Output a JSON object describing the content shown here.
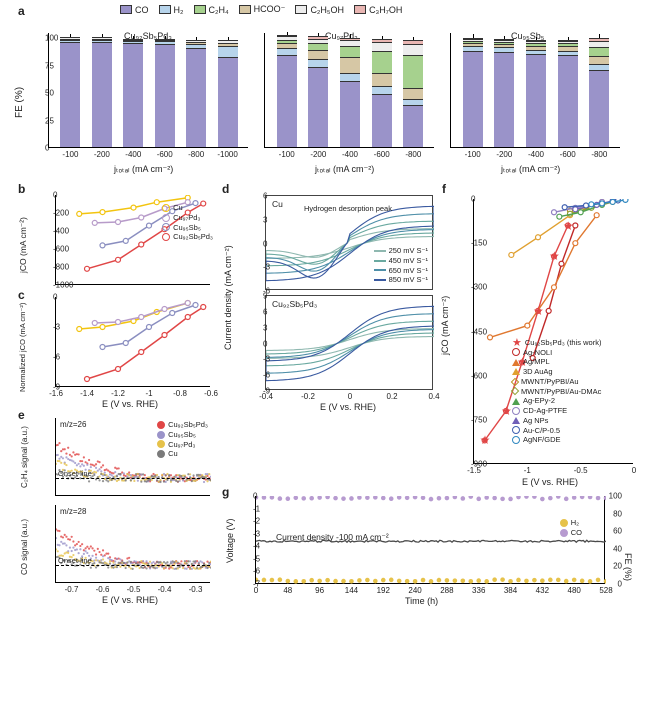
{
  "palette": {
    "CO": "#9a93c9",
    "H2": "#b7d4eb",
    "C2H4": "#a6d18e",
    "HCOO": "#d6c7a5",
    "C2H5OH": "#ededed",
    "C3H7OH": "#e9b6b3",
    "cu": "#f2c40f",
    "cu97pd3": "#b79bc9",
    "cu95sb5": "#8a8ec0",
    "cu92sb5pd3": "#e04646",
    "teal": "#4a9e9a",
    "navy": "#3a4a8f",
    "agNOLI": "#c02828",
    "agMPL": "#e07830",
    "auag": "#e0a030",
    "mwnt1": "#b89020",
    "mwnt2": "#90a030",
    "epy": "#50a050",
    "cdag": "#9080c0",
    "agnp": "#7060b8",
    "aucp": "#4060b0",
    "agnf": "#3088c0",
    "hpurple": "#b79bd0",
    "hyellow": "#e6c24a"
  },
  "legend_top": [
    {
      "key": "CO",
      "label": "CO"
    },
    {
      "key": "H2",
      "label": "H₂"
    },
    {
      "key": "C2H4",
      "label": "C₂H₄"
    },
    {
      "key": "HCOO",
      "label": "HCOO⁻"
    },
    {
      "key": "C2H5OH",
      "label": "C₂H₅OH"
    },
    {
      "key": "C3H7OH",
      "label": "C₃H₇OH"
    }
  ],
  "panel_a": {
    "ylabel": "FE (%)",
    "xlabel": "jₜₒₜₐₗ (mA cm⁻²)",
    "ymax": 105,
    "ytick": 25,
    "groups": [
      {
        "title": "Cu₉₂Sb₅Pd₃",
        "cats": [
          "-100",
          "-200",
          "-400",
          "-600",
          "-800",
          "-1000"
        ],
        "stacks": [
          {
            "CO": 96,
            "H2": 2,
            "HCOO": 1,
            "C2H4": 0,
            "C2H5OH": 1,
            "C3H7OH": 0
          },
          {
            "CO": 96,
            "H2": 2,
            "HCOO": 1,
            "C2H4": 0,
            "C2H5OH": 1,
            "C3H7OH": 0
          },
          {
            "CO": 95,
            "H2": 2,
            "HCOO": 1,
            "C2H4": 0,
            "C2H5OH": 1,
            "C3H7OH": 0
          },
          {
            "CO": 94,
            "H2": 3,
            "HCOO": 1,
            "C2H4": 0,
            "C2H5OH": 1,
            "C3H7OH": 0
          },
          {
            "CO": 90,
            "H2": 4,
            "HCOO": 2,
            "C2H4": 0,
            "C2H5OH": 2,
            "C3H7OH": 0
          },
          {
            "CO": 82,
            "H2": 10,
            "HCOO": 3,
            "C2H4": 0,
            "C2H5OH": 3,
            "C3H7OH": 0
          }
        ]
      },
      {
        "title": "Cu₉₇Pd₃",
        "cats": [
          "-100",
          "-200",
          "-400",
          "-600",
          "-800"
        ],
        "stacks": [
          {
            "CO": 84,
            "H2": 6,
            "HCOO": 5,
            "C2H4": 3,
            "C2H5OH": 3,
            "C3H7OH": 1
          },
          {
            "CO": 73,
            "H2": 7,
            "HCOO": 9,
            "C2H4": 6,
            "C2H5OH": 4,
            "C3H7OH": 2
          },
          {
            "CO": 60,
            "H2": 8,
            "HCOO": 14,
            "C2H4": 10,
            "C2H5OH": 6,
            "C3H7OH": 2
          },
          {
            "CO": 48,
            "H2": 8,
            "HCOO": 12,
            "C2H4": 20,
            "C2H5OH": 8,
            "C3H7OH": 3
          },
          {
            "CO": 38,
            "H2": 6,
            "HCOO": 10,
            "C2H4": 30,
            "C2H5OH": 10,
            "C3H7OH": 4
          }
        ]
      },
      {
        "title": "Cu₉₅Sb₅",
        "cats": [
          "-100",
          "-200",
          "-400",
          "-600",
          "-800"
        ],
        "stacks": [
          {
            "CO": 88,
            "H2": 4,
            "HCOO": 3,
            "C2H4": 2,
            "C2H5OH": 2,
            "C3H7OH": 1
          },
          {
            "CO": 87,
            "H2": 4,
            "HCOO": 3,
            "C2H4": 2,
            "C2H5OH": 2,
            "C3H7OH": 1
          },
          {
            "CO": 85,
            "H2": 4,
            "HCOO": 3,
            "C2H4": 3,
            "C2H5OH": 2,
            "C3H7OH": 1
          },
          {
            "CO": 84,
            "H2": 4,
            "HCOO": 4,
            "C2H4": 3,
            "C2H5OH": 2,
            "C3H7OH": 1
          },
          {
            "CO": 70,
            "H2": 6,
            "HCOO": 7,
            "C2H4": 8,
            "C2H5OH": 6,
            "C3H7OH": 3
          }
        ]
      }
    ],
    "err": 2
  },
  "panel_b": {
    "ylabel": "jCO (mA cm⁻²)",
    "series": {
      "Cu": [
        {
          "x": -0.75,
          "y": -30
        },
        {
          "x": -0.95,
          "y": -80
        },
        {
          "x": -1.1,
          "y": -140
        },
        {
          "x": -1.3,
          "y": -190
        },
        {
          "x": -1.45,
          "y": -210
        }
      ],
      "Cu97Pd3": [
        {
          "x": -0.75,
          "y": -80
        },
        {
          "x": -0.9,
          "y": -150
        },
        {
          "x": -1.05,
          "y": -250
        },
        {
          "x": -1.2,
          "y": -300
        },
        {
          "x": -1.35,
          "y": -310
        }
      ],
      "Cu95Sb5": [
        {
          "x": -0.7,
          "y": -90
        },
        {
          "x": -0.85,
          "y": -180
        },
        {
          "x": -1.0,
          "y": -340
        },
        {
          "x": -1.15,
          "y": -510
        },
        {
          "x": -1.3,
          "y": -560
        }
      ],
      "Cu92Sb5Pd3": [
        {
          "x": -0.65,
          "y": -95
        },
        {
          "x": -0.75,
          "y": -195
        },
        {
          "x": -0.9,
          "y": -380
        },
        {
          "x": -1.05,
          "y": -550
        },
        {
          "x": -1.2,
          "y": -720
        },
        {
          "x": -1.4,
          "y": -820
        }
      ]
    },
    "ylim": [
      -1000,
      0
    ],
    "yticks": [
      -1000,
      -800,
      -600,
      -400,
      -200,
      0
    ]
  },
  "panel_c": {
    "ylabel": "Normalized jCO (mA cm⁻²)",
    "series": {
      "Cu": [
        {
          "x": -0.75,
          "y": -0.6
        },
        {
          "x": -0.95,
          "y": -1.5
        },
        {
          "x": -1.1,
          "y": -2.4
        },
        {
          "x": -1.3,
          "y": -3.0
        },
        {
          "x": -1.45,
          "y": -3.2
        }
      ],
      "Cu97Pd3": [
        {
          "x": -0.75,
          "y": -0.6
        },
        {
          "x": -0.9,
          "y": -1.2
        },
        {
          "x": -1.05,
          "y": -2.0
        },
        {
          "x": -1.2,
          "y": -2.5
        },
        {
          "x": -1.35,
          "y": -2.6
        }
      ],
      "Cu95Sb5": [
        {
          "x": -0.7,
          "y": -0.8
        },
        {
          "x": -0.85,
          "y": -1.6
        },
        {
          "x": -1.0,
          "y": -3.0
        },
        {
          "x": -1.15,
          "y": -4.6
        },
        {
          "x": -1.3,
          "y": -5.0
        }
      ],
      "Cu92Sb5Pd3": [
        {
          "x": -0.65,
          "y": -1.0
        },
        {
          "x": -0.75,
          "y": -2.0
        },
        {
          "x": -0.9,
          "y": -3.8
        },
        {
          "x": -1.05,
          "y": -5.5
        },
        {
          "x": -1.2,
          "y": -7.2
        },
        {
          "x": -1.4,
          "y": -8.2
        }
      ]
    },
    "ylim": [
      -9,
      0
    ],
    "yticks": [
      -9,
      -6,
      -3,
      0
    ],
    "xlabel": "E (V vs. RHE)",
    "xlim": [
      -1.6,
      -0.6
    ],
    "xticks": [
      -1.6,
      -1.4,
      -1.2,
      -1.0,
      -0.8,
      -0.6
    ]
  },
  "legend_bc": [
    {
      "key": "cu",
      "label": "Cu"
    },
    {
      "key": "cu97pd3",
      "label": "Cu₉₇Pd₃"
    },
    {
      "key": "cu95sb5",
      "label": "Cu₉₅Sb₅"
    },
    {
      "key": "cu92sb5pd3",
      "label": "Cu₉₂Sb₅Pd₃"
    }
  ],
  "panel_d": {
    "ylabel": "Current density (mA cm⁻²)",
    "xlabel": "E (V vs. RHE)",
    "xlim": [
      -0.4,
      0.4
    ],
    "xticks": [
      -0.4,
      -0.2,
      0,
      0.2,
      0.4
    ],
    "top": {
      "title": "Cu",
      "hdesorp": "Hydrogen desorption peak",
      "ylim": [
        -6,
        6
      ],
      "yticks": [
        -6,
        -3,
        0,
        3,
        6
      ]
    },
    "bot": {
      "title": "Cu₉₂Sb₅Pd₃",
      "ylim": [
        -9,
        9
      ],
      "yticks": [
        -9,
        -6,
        -3,
        0,
        3,
        6,
        9
      ]
    },
    "scan_rates": [
      "250 mV S⁻¹",
      "450 mV S⁻¹",
      "650 mV S⁻¹",
      "850 mV S⁻¹"
    ],
    "scan_colors": [
      "#8fb8b0",
      "#6aa9a0",
      "#4e8fa8",
      "#3a5aa0"
    ]
  },
  "panel_e": {
    "top": {
      "ylabel": "C₂H₄ signal (a.u.)",
      "mz": "m/z=26"
    },
    "bot": {
      "ylabel": "CO signal (a.u.)",
      "mz": "m/z=28"
    },
    "onset": "Onset line",
    "xlabel": "E (V vs. RHE)",
    "xlim": [
      -0.75,
      -0.25
    ],
    "xticks": [
      -0.3,
      -0.4,
      -0.5,
      -0.6,
      -0.7
    ],
    "series_colors": {
      "Cu92Sb5Pd3": "#e04646",
      "Cu95Sb5": "#9a93c9",
      "Cu97Pd3": "#e6c24a",
      "Cu": "#7a7a7a"
    },
    "labels": [
      "Cu₉₂Sb₅Pd₃",
      "Cu₉₅Sb₅",
      "Cu₉₇Pd₃",
      "Cu"
    ]
  },
  "panel_f": {
    "ylabel": "jCO (mA cm⁻²)",
    "xlabel": "E (V vs. RHE)",
    "ylim": [
      -900,
      0
    ],
    "yticks": [
      -900,
      -750,
      -600,
      -450,
      -300,
      -150,
      0
    ],
    "xlim": [
      -1.5,
      0
    ],
    "xticks": [
      -1.5,
      -1.0,
      -0.5,
      0
    ],
    "legend": [
      {
        "color": "cu92sb5pd3",
        "shape": "star",
        "fill": true,
        "label": "Cu₉₂Sb₅Pd₃ (this work)"
      },
      {
        "color": "agNOLI",
        "shape": "circle",
        "fill": false,
        "label": "Ag-NOLI"
      },
      {
        "color": "agMPL",
        "shape": "triangle",
        "fill": false,
        "label": "Ag/MPL"
      },
      {
        "color": "auag",
        "shape": "triangle",
        "fill": false,
        "label": "3D AuAg"
      },
      {
        "color": "mwnt1",
        "shape": "diamond",
        "fill": false,
        "label": "MWNT/PyPBI/Au"
      },
      {
        "color": "mwnt2",
        "shape": "diamond",
        "fill": false,
        "label": "MWNT/PyPBI/Au-DMAc"
      },
      {
        "color": "epy",
        "shape": "triangle",
        "fill": false,
        "label": "Ag-EPy-2"
      },
      {
        "color": "cdag",
        "shape": "circle",
        "fill": false,
        "label": "CD-Ag-PTFE"
      },
      {
        "color": "agnp",
        "shape": "triangle",
        "fill": false,
        "label": "Ag NPs"
      },
      {
        "color": "aucp",
        "shape": "circle",
        "fill": false,
        "label": "Au-C/P-0.5"
      },
      {
        "color": "agnf",
        "shape": "circle",
        "fill": false,
        "label": "AgNF/GDE"
      }
    ],
    "series": {
      "cu92sb5pd3": [
        {
          "x": -0.62,
          "y": -90
        },
        {
          "x": -0.75,
          "y": -195
        },
        {
          "x": -0.9,
          "y": -380
        },
        {
          "x": -1.05,
          "y": -555
        },
        {
          "x": -1.2,
          "y": -720
        },
        {
          "x": -1.4,
          "y": -820
        }
      ],
      "agNOLI": [
        {
          "x": -0.55,
          "y": -90
        },
        {
          "x": -0.68,
          "y": -220
        },
        {
          "x": -0.8,
          "y": -380
        },
        {
          "x": -0.95,
          "y": -540
        }
      ],
      "agMPL": [
        {
          "x": -0.35,
          "y": -55
        },
        {
          "x": -0.55,
          "y": -150
        },
        {
          "x": -0.75,
          "y": -300
        },
        {
          "x": -1.0,
          "y": -430
        },
        {
          "x": -1.35,
          "y": -470
        }
      ],
      "auag": [
        {
          "x": -0.3,
          "y": -10
        },
        {
          "x": -0.6,
          "y": -55
        },
        {
          "x": -0.9,
          "y": -130
        },
        {
          "x": -1.15,
          "y": -190
        }
      ],
      "mwnt1": [
        {
          "x": -0.2,
          "y": -8
        },
        {
          "x": -0.4,
          "y": -25
        },
        {
          "x": -0.6,
          "y": -40
        }
      ],
      "mwnt2": [
        {
          "x": -0.2,
          "y": -10
        },
        {
          "x": -0.4,
          "y": -30
        },
        {
          "x": -0.6,
          "y": -50
        }
      ],
      "epy": [
        {
          "x": -0.3,
          "y": -20
        },
        {
          "x": -0.5,
          "y": -45
        },
        {
          "x": -0.7,
          "y": -60
        }
      ],
      "cdag": [
        {
          "x": -0.3,
          "y": -10
        },
        {
          "x": -0.55,
          "y": -30
        },
        {
          "x": -0.75,
          "y": -45
        }
      ],
      "agnp": [
        {
          "x": -0.2,
          "y": -6
        },
        {
          "x": -0.35,
          "y": -20
        },
        {
          "x": -0.55,
          "y": -35
        }
      ],
      "aucp": [
        {
          "x": -0.15,
          "y": -5
        },
        {
          "x": -0.3,
          "y": -15
        },
        {
          "x": -0.45,
          "y": -22
        },
        {
          "x": -0.65,
          "y": -28
        }
      ],
      "agnf": [
        {
          "x": -0.08,
          "y": -3
        },
        {
          "x": -0.2,
          "y": -10
        },
        {
          "x": -0.3,
          "y": -15
        },
        {
          "x": -0.4,
          "y": -18
        }
      ]
    }
  },
  "panel_g": {
    "left_ylabel": "Voltage (V)",
    "right_ylabel": "FE (%)",
    "xlabel": "Time (h)",
    "note": "Current density -100 mA cm⁻²",
    "xlim": [
      0,
      528
    ],
    "xticks": [
      0,
      48,
      96,
      144,
      192,
      240,
      288,
      336,
      384,
      432,
      480,
      528
    ],
    "left_ylim": [
      -7,
      0
    ],
    "left_yticks": [
      -7,
      -6,
      -5,
      -4,
      -3,
      -2,
      -1,
      0
    ],
    "right_ylim": [
      0,
      100
    ],
    "right_yticks": [
      0,
      20,
      40,
      60,
      80,
      100
    ],
    "voltage_y": -3.6,
    "co_fe": 98,
    "h2_fe": 4,
    "legend": [
      {
        "key": "hyellow",
        "label": "H₂"
      },
      {
        "key": "hpurple",
        "label": "CO"
      }
    ]
  },
  "labels": {
    "a": "a",
    "b": "b",
    "c": "c",
    "d": "d",
    "e": "e",
    "f": "f",
    "g": "g"
  }
}
